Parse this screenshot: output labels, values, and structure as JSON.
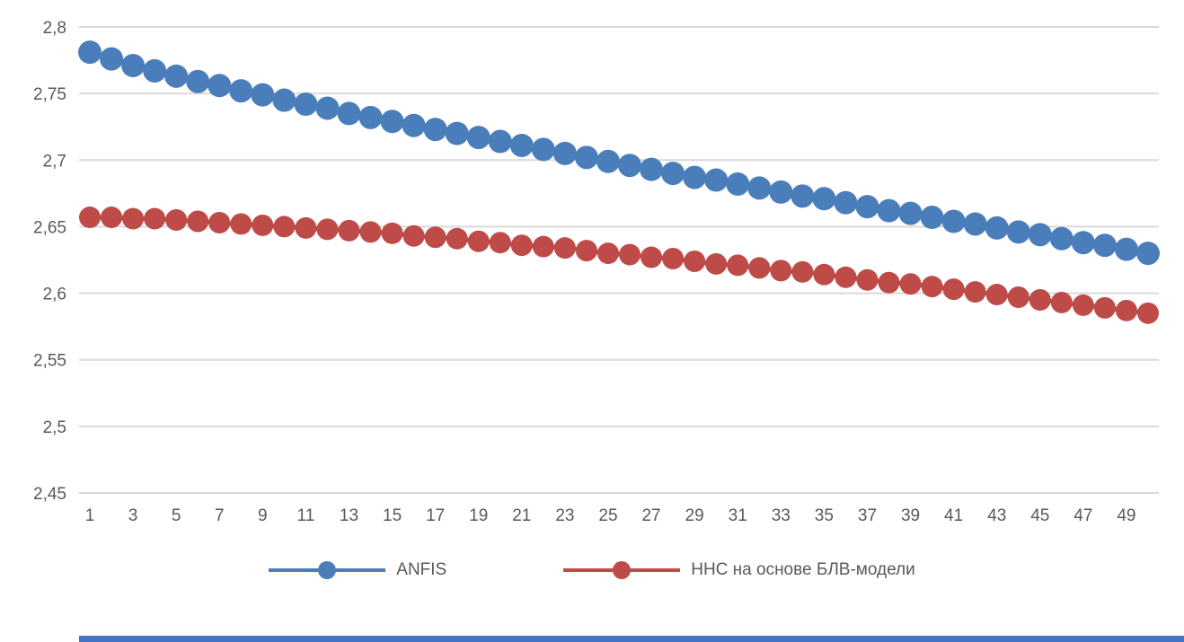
{
  "chart_data": {
    "type": "line",
    "title": "",
    "xlabel": "",
    "ylabel": "",
    "ylim": [
      2.45,
      2.8
    ],
    "grid": "horizontal",
    "legend_position": "bottom",
    "marker": "circle",
    "decimal_separator": ",",
    "y_ticks": [
      2.45,
      2.5,
      2.55,
      2.6,
      2.65,
      2.7,
      2.75,
      2.8
    ],
    "y_tick_labels": [
      "2,45",
      "2,5",
      "2,55",
      "2,6",
      "2,65",
      "2,7",
      "2,75",
      "2,8"
    ],
    "x_tick_labels": [
      "1",
      "3",
      "5",
      "7",
      "9",
      "11",
      "13",
      "15",
      "17",
      "19",
      "21",
      "23",
      "25",
      "27",
      "29",
      "31",
      "33",
      "35",
      "37",
      "39",
      "41",
      "43",
      "45",
      "47",
      "49"
    ],
    "x": [
      1,
      2,
      3,
      4,
      5,
      6,
      7,
      8,
      9,
      10,
      11,
      12,
      13,
      14,
      15,
      16,
      17,
      18,
      19,
      20,
      21,
      22,
      23,
      24,
      25,
      26,
      27,
      28,
      29,
      30,
      31,
      32,
      33,
      34,
      35,
      36,
      37,
      38,
      39,
      40,
      41,
      42,
      43,
      44,
      45,
      46,
      47,
      48,
      49,
      50
    ],
    "series": [
      {
        "name": "ANFIS",
        "color": "#4A7EBB",
        "values": [
          2.781,
          2.776,
          2.771,
          2.767,
          2.763,
          2.759,
          2.756,
          2.752,
          2.749,
          2.745,
          2.742,
          2.739,
          2.735,
          2.732,
          2.729,
          2.726,
          2.723,
          2.72,
          2.717,
          2.714,
          2.711,
          2.708,
          2.705,
          2.702,
          2.699,
          2.696,
          2.693,
          2.69,
          2.687,
          2.685,
          2.682,
          2.679,
          2.676,
          2.673,
          2.671,
          2.668,
          2.665,
          2.662,
          2.66,
          2.657,
          2.654,
          2.652,
          2.649,
          2.646,
          2.644,
          2.641,
          2.638,
          2.636,
          2.633,
          2.63
        ]
      },
      {
        "name": "ННС на основе БЛВ-модели",
        "color": "#BE4B48",
        "values": [
          2.657,
          2.657,
          2.656,
          2.656,
          2.655,
          2.654,
          2.653,
          2.652,
          2.651,
          2.65,
          2.649,
          2.648,
          2.647,
          2.646,
          2.645,
          2.643,
          2.642,
          2.641,
          2.639,
          2.638,
          2.636,
          2.635,
          2.634,
          2.632,
          2.63,
          2.629,
          2.627,
          2.626,
          2.624,
          2.622,
          2.621,
          2.619,
          2.617,
          2.616,
          2.614,
          2.612,
          2.61,
          2.608,
          2.607,
          2.605,
          2.603,
          2.601,
          2.599,
          2.597,
          2.595,
          2.593,
          2.591,
          2.589,
          2.587,
          2.585
        ]
      }
    ]
  },
  "colors": {
    "grid": "#D9D9D9",
    "axis_text": "#595959",
    "background": "#FFFFFF",
    "accent_bar": "#4472C4"
  }
}
